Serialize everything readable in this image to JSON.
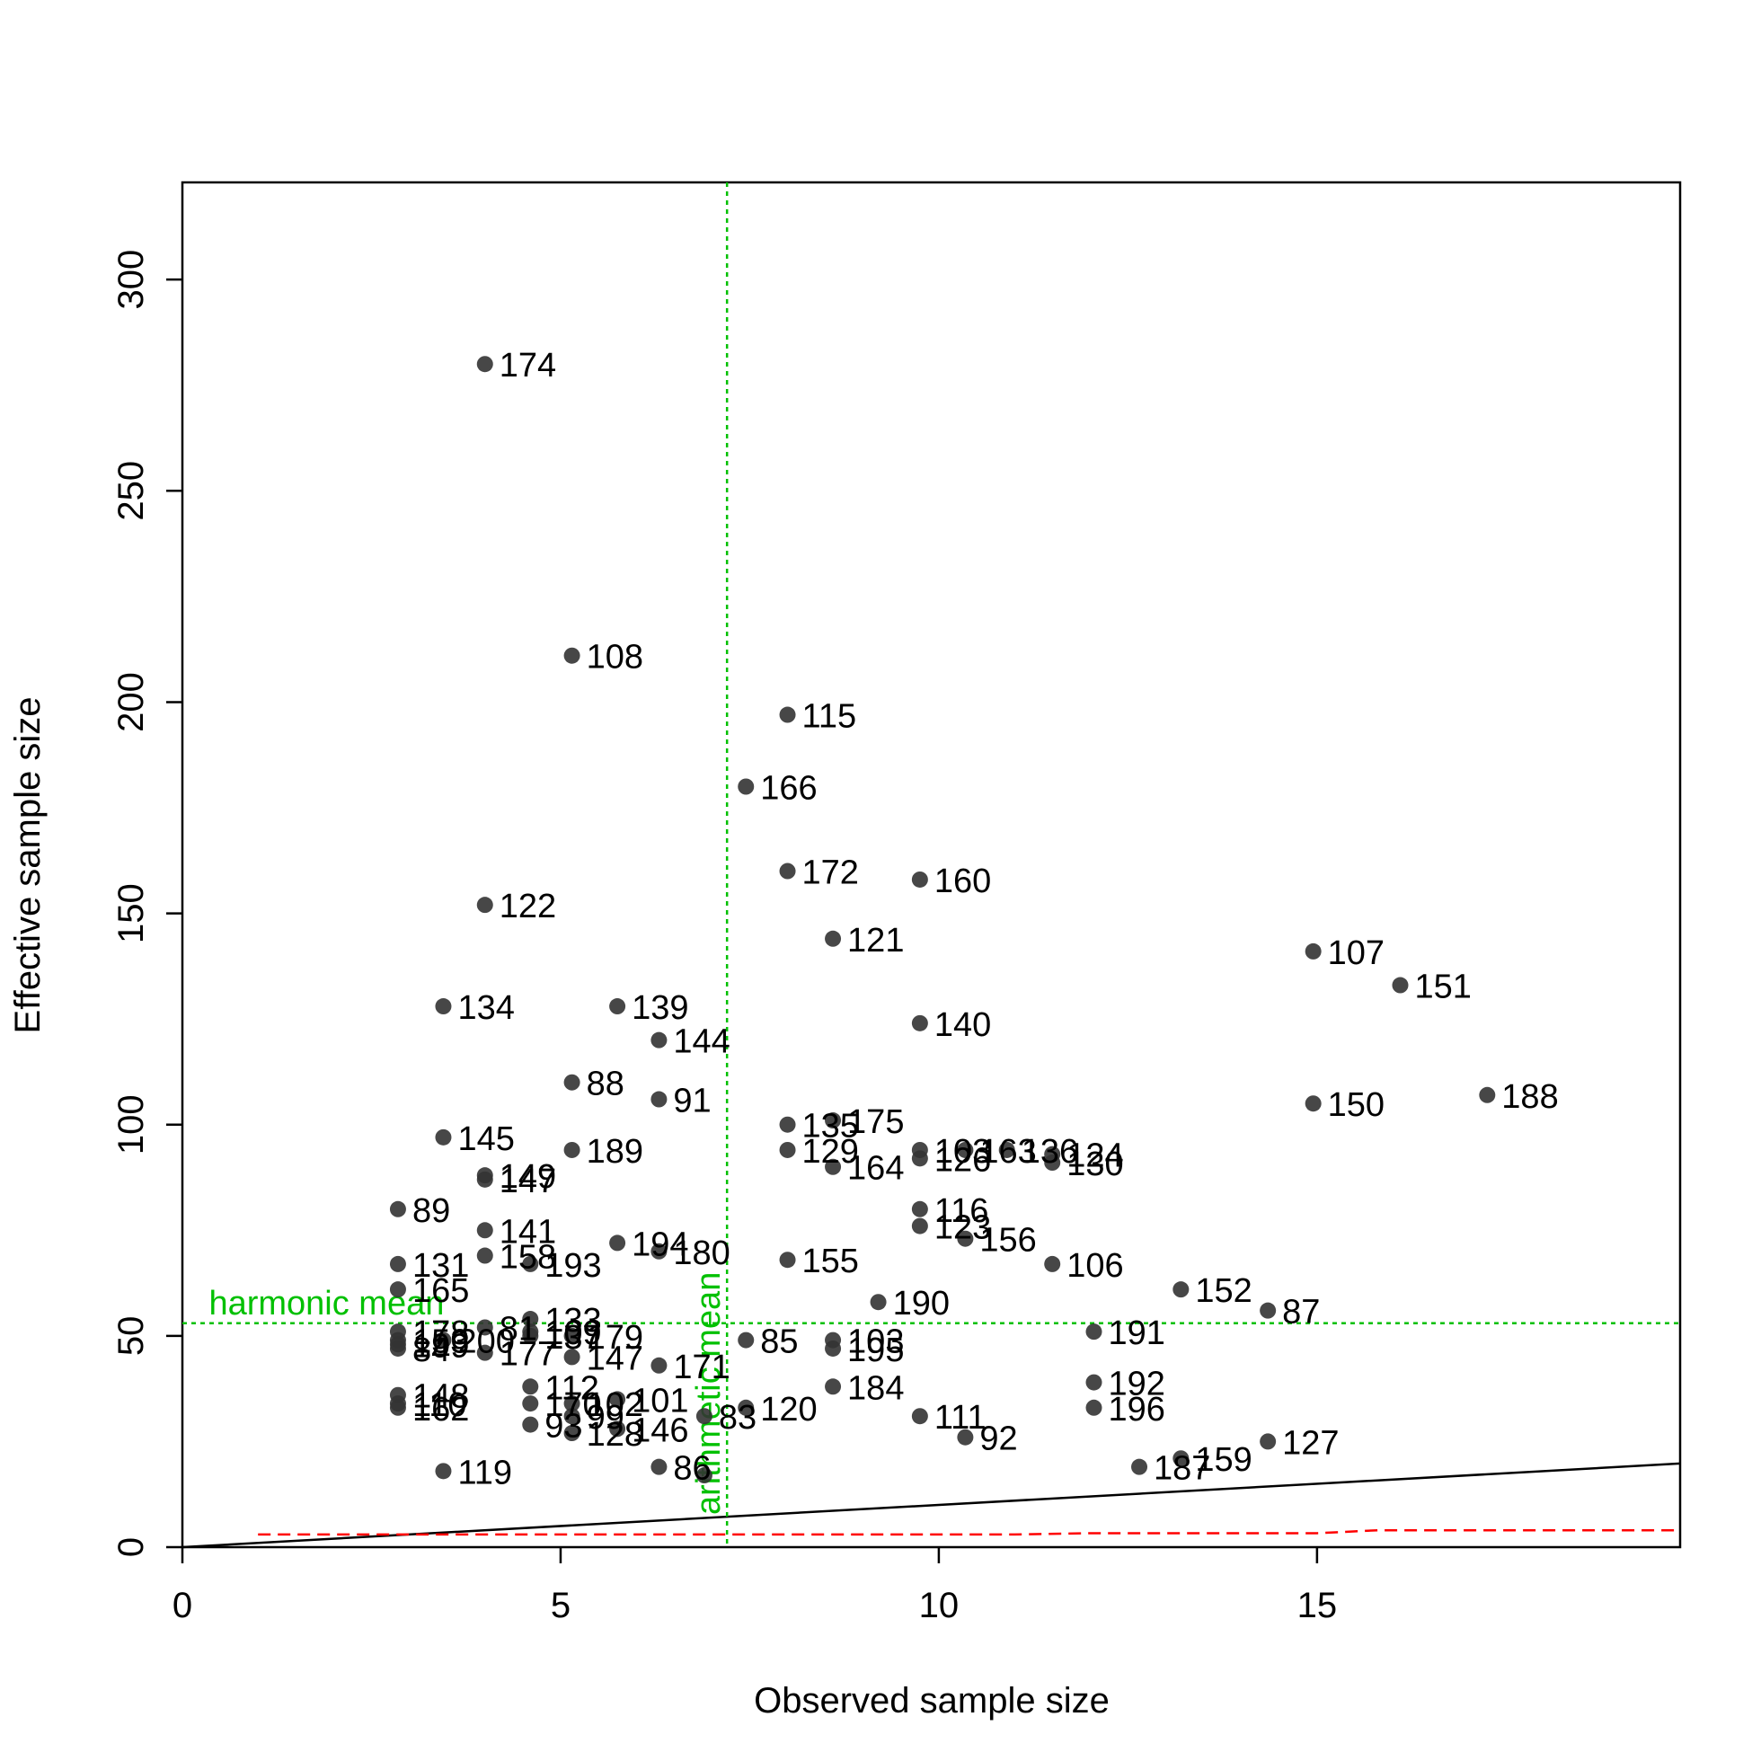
{
  "chart_data": {
    "type": "scatter",
    "title": "",
    "xlabel": "Observed sample size",
    "ylabel": "Effective sample size",
    "xlim": [
      0,
      19.8
    ],
    "ylim": [
      0,
      323
    ],
    "x_ticks": [
      0,
      5,
      10,
      15
    ],
    "y_ticks": [
      0,
      50,
      100,
      150,
      200,
      250,
      300
    ],
    "grid": false,
    "legend": "none",
    "point_color": "#333333",
    "points": [
      {
        "id": "174",
        "x": 4.0,
        "y": 280
      },
      {
        "id": "108",
        "x": 5.15,
        "y": 211
      },
      {
        "id": "115",
        "x": 8.0,
        "y": 197
      },
      {
        "id": "166",
        "x": 7.45,
        "y": 180
      },
      {
        "id": "172",
        "x": 8.0,
        "y": 160
      },
      {
        "id": "160",
        "x": 9.75,
        "y": 158
      },
      {
        "id": "122",
        "x": 4.0,
        "y": 152
      },
      {
        "id": "121",
        "x": 8.6,
        "y": 144
      },
      {
        "id": "107",
        "x": 14.95,
        "y": 141
      },
      {
        "id": "151",
        "x": 16.1,
        "y": 133
      },
      {
        "id": "134",
        "x": 3.45,
        "y": 128
      },
      {
        "id": "139",
        "x": 5.75,
        "y": 128
      },
      {
        "id": "140",
        "x": 9.75,
        "y": 124
      },
      {
        "id": "144",
        "x": 6.3,
        "y": 120
      },
      {
        "id": "88",
        "x": 5.15,
        "y": 110
      },
      {
        "id": "188",
        "x": 17.25,
        "y": 107
      },
      {
        "id": "91",
        "x": 6.3,
        "y": 106
      },
      {
        "id": "150",
        "x": 14.95,
        "y": 105
      },
      {
        "id": "175",
        "x": 8.6,
        "y": 101
      },
      {
        "id": "135",
        "x": 8.0,
        "y": 100
      },
      {
        "id": "145",
        "x": 3.45,
        "y": 97
      },
      {
        "id": "189",
        "x": 5.15,
        "y": 94
      },
      {
        "id": "129",
        "x": 8.0,
        "y": 94
      },
      {
        "id": "103",
        "x": 9.75,
        "y": 94
      },
      {
        "id": "126",
        "x": 9.75,
        "y": 92
      },
      {
        "id": "163",
        "x": 10.35,
        "y": 94
      },
      {
        "id": "136",
        "x": 10.9,
        "y": 94
      },
      {
        "id": "124",
        "x": 11.5,
        "y": 93
      },
      {
        "id": "130",
        "x": 11.5,
        "y": 91
      },
      {
        "id": "164",
        "x": 8.6,
        "y": 90
      },
      {
        "id": "149",
        "x": 4.0,
        "y": 88
      },
      {
        "id": "147",
        "x": 4.0,
        "y": 87
      },
      {
        "id": "89",
        "x": 2.85,
        "y": 80
      },
      {
        "id": "116",
        "x": 9.75,
        "y": 80
      },
      {
        "id": "123",
        "x": 9.75,
        "y": 76
      },
      {
        "id": "141",
        "x": 4.0,
        "y": 75
      },
      {
        "id": "156",
        "x": 10.35,
        "y": 73
      },
      {
        "id": "194",
        "x": 5.75,
        "y": 72
      },
      {
        "id": "180",
        "x": 6.3,
        "y": 70
      },
      {
        "id": "158",
        "x": 4.0,
        "y": 69
      },
      {
        "id": "155",
        "x": 8.0,
        "y": 68
      },
      {
        "id": "193",
        "x": 4.6,
        "y": 67
      },
      {
        "id": "131",
        "x": 2.85,
        "y": 67
      },
      {
        "id": "106",
        "x": 11.5,
        "y": 67
      },
      {
        "id": "152",
        "x": 13.2,
        "y": 61
      },
      {
        "id": "165",
        "x": 2.85,
        "y": 61
      },
      {
        "id": "190",
        "x": 9.2,
        "y": 58
      },
      {
        "id": "87",
        "x": 14.35,
        "y": 56
      },
      {
        "id": "133",
        "x": 4.6,
        "y": 54
      },
      {
        "id": "81",
        "x": 4.0,
        "y": 52
      },
      {
        "id": "109",
        "x": 4.6,
        "y": 51
      },
      {
        "id": "178",
        "x": 2.85,
        "y": 51
      },
      {
        "id": "191",
        "x": 12.05,
        "y": 51
      },
      {
        "id": "137",
        "x": 4.6,
        "y": 50
      },
      {
        "id": "179",
        "x": 5.15,
        "y": 50
      },
      {
        "id": "200",
        "x": 3.45,
        "y": 49
      },
      {
        "id": "153",
        "x": 2.85,
        "y": 49
      },
      {
        "id": "85",
        "x": 7.45,
        "y": 49
      },
      {
        "id": "103b",
        "x": 8.6,
        "y": 49
      },
      {
        "id": "199",
        "x": 2.85,
        "y": 48
      },
      {
        "id": "195",
        "x": 8.6,
        "y": 47
      },
      {
        "id": "84",
        "x": 2.85,
        "y": 47
      },
      {
        "id": "177",
        "x": 4.0,
        "y": 46
      },
      {
        "id": "147b",
        "x": 5.15,
        "y": 45
      },
      {
        "id": "171",
        "x": 6.3,
        "y": 43
      },
      {
        "id": "192",
        "x": 12.05,
        "y": 39
      },
      {
        "id": "112",
        "x": 4.6,
        "y": 38
      },
      {
        "id": "184",
        "x": 8.6,
        "y": 38
      },
      {
        "id": "148",
        "x": 2.85,
        "y": 36
      },
      {
        "id": "101",
        "x": 5.75,
        "y": 35
      },
      {
        "id": "110",
        "x": 2.85,
        "y": 34
      },
      {
        "id": "170",
        "x": 4.6,
        "y": 34
      },
      {
        "id": "102",
        "x": 5.15,
        "y": 34
      },
      {
        "id": "196",
        "x": 12.05,
        "y": 33
      },
      {
        "id": "120",
        "x": 7.45,
        "y": 33
      },
      {
        "id": "162",
        "x": 2.85,
        "y": 33
      },
      {
        "id": "111",
        "x": 9.75,
        "y": 31
      },
      {
        "id": "83",
        "x": 6.9,
        "y": 31
      },
      {
        "id": "99",
        "x": 5.15,
        "y": 31
      },
      {
        "id": "93",
        "x": 4.6,
        "y": 29
      },
      {
        "id": "146",
        "x": 5.75,
        "y": 28
      },
      {
        "id": "128",
        "x": 5.15,
        "y": 27
      },
      {
        "id": "92",
        "x": 10.35,
        "y": 26
      },
      {
        "id": "127",
        "x": 14.35,
        "y": 25
      },
      {
        "id": "159",
        "x": 13.2,
        "y": 21
      },
      {
        "id": "187",
        "x": 12.65,
        "y": 19
      },
      {
        "id": "86",
        "x": 6.3,
        "y": 19
      },
      {
        "id": "119",
        "x": 3.45,
        "y": 18
      },
      {
        "id": "174b",
        "x": 6.9,
        "y": 17
      }
    ],
    "point_labels": [
      "174",
      "108",
      "115",
      "166",
      "172",
      "160",
      "122",
      "121",
      "107",
      "151",
      "134",
      "139",
      "140",
      "144",
      "88",
      "188",
      "91",
      "150",
      "175",
      "135",
      "145",
      "189",
      "129",
      "103",
      "126",
      "163",
      "136",
      "124",
      "130",
      "164",
      "149",
      "147",
      "89",
      "116",
      "123",
      "141",
      "156",
      "194",
      "180",
      "158",
      "155",
      "193",
      "131",
      "106",
      "152",
      "165",
      "190",
      "87",
      "133",
      "81",
      "109",
      "178",
      "191",
      "137",
      "179",
      "200",
      "153",
      "85",
      "103",
      "199",
      "195",
      "84",
      "177",
      "147",
      "171",
      "192",
      "112",
      "184",
      "148",
      "101",
      "110",
      "170",
      "102",
      "196",
      "120",
      "162",
      "111",
      "83",
      "99",
      "93",
      "146",
      "128",
      "92",
      "127",
      "159",
      "187",
      "86",
      "119",
      ""
    ],
    "reference_lines": {
      "identity_line": {
        "color": "#000000",
        "from": [
          0,
          0
        ],
        "to": [
          19.8,
          19.8
        ]
      },
      "red_dashed": {
        "color": "#ff0000",
        "points": [
          [
            1,
            3
          ],
          [
            3,
            3
          ],
          [
            6,
            3
          ],
          [
            9,
            3
          ],
          [
            11,
            3
          ],
          [
            12,
            3.3
          ],
          [
            15,
            3.3
          ],
          [
            15.8,
            4
          ],
          [
            19.8,
            4
          ]
        ]
      },
      "harmonic_mean": {
        "label": "harmonic mean",
        "y": 53,
        "color": "#00c000"
      },
      "arithmetic_mean": {
        "label": "arithmetic mean",
        "x": 7.2,
        "color": "#00c000"
      }
    }
  }
}
